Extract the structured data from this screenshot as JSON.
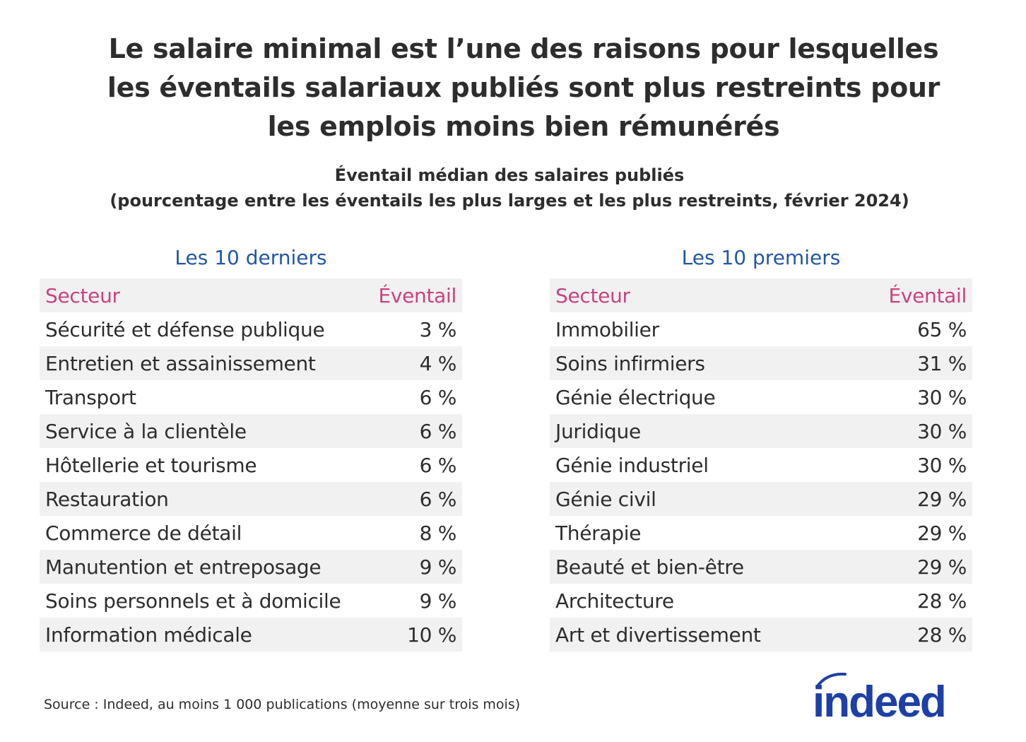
{
  "title": [
    "Le salaire minimal est l’une des raisons pour lesquelles",
    "les éventails salariaux publiés sont plus restreints pour",
    "les emplois moins bien rémunérés"
  ],
  "subtitle": [
    "Éventail médian des salaires publiés",
    "(pourcentage entre les éventails les plus larges et les plus restreints, février 2024)"
  ],
  "source": "Source : Indeed, au moins 1 000 publications (moyenne sur trois mois)",
  "logo_text": "indeed",
  "colors": {
    "header_text": "#c9437f",
    "group_title": "#2356a8",
    "stripe": "#f1f1f1",
    "logo": "#1d3fa6"
  },
  "chart_data": {
    "type": "table",
    "tables": [
      {
        "title": "Les 10 derniers",
        "columns": [
          "Secteur",
          "Éventail"
        ],
        "rows": [
          [
            "Sécurité et défense publique",
            "3 %"
          ],
          [
            "Entretien et assainissement",
            "4 %"
          ],
          [
            "Transport",
            "6 %"
          ],
          [
            "Service à la clientèle",
            "6 %"
          ],
          [
            "Hôtellerie et tourisme",
            "6 %"
          ],
          [
            "Restauration",
            "6 %"
          ],
          [
            "Commerce de détail",
            "8 %"
          ],
          [
            "Manutention et entreposage",
            "9 %"
          ],
          [
            "Soins personnels et à domicile",
            "9 %"
          ],
          [
            "Information médicale",
            "10 %"
          ]
        ]
      },
      {
        "title": "Les 10 premiers",
        "columns": [
          "Secteur",
          "Éventail"
        ],
        "rows": [
          [
            "Immobilier",
            "65 %"
          ],
          [
            "Soins infirmiers",
            "31 %"
          ],
          [
            "Génie électrique",
            "30 %"
          ],
          [
            "Juridique",
            "30 %"
          ],
          [
            "Génie industriel",
            "30 %"
          ],
          [
            "Génie civil",
            "29 %"
          ],
          [
            "Thérapie",
            "29 %"
          ],
          [
            "Beauté et bien-être",
            "29 %"
          ],
          [
            "Architecture",
            "28 %"
          ],
          [
            "Art et divertissement",
            "28 %"
          ]
        ]
      }
    ]
  }
}
